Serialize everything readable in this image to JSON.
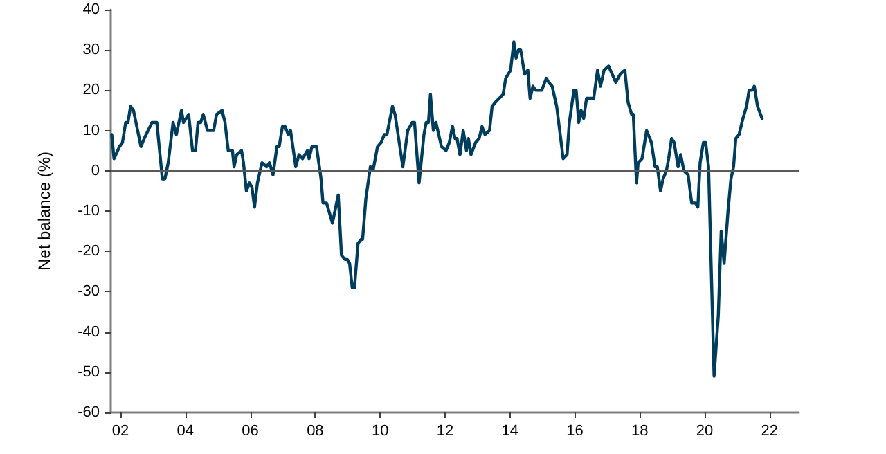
{
  "chart_data": {
    "type": "line",
    "ylabel": "Net balance (%)",
    "x": [
      2001.73,
      2001.8,
      2001.97,
      2002.06,
      2002.16,
      2002.23,
      2002.31,
      2002.4,
      2002.63,
      2002.73,
      2002.97,
      2003.12,
      2003.29,
      2003.37,
      2003.47,
      2003.62,
      2003.72,
      2003.88,
      2003.94,
      2004.1,
      2004.22,
      2004.31,
      2004.39,
      2004.47,
      2004.55,
      2004.68,
      2004.79,
      2004.87,
      2004.96,
      2005.13,
      2005.22,
      2005.32,
      2005.45,
      2005.5,
      2005.58,
      2005.73,
      2005.79,
      2005.88,
      2005.97,
      2006.05,
      2006.13,
      2006.22,
      2006.36,
      2006.5,
      2006.59,
      2006.7,
      2006.82,
      2006.89,
      2006.99,
      2007.07,
      2007.17,
      2007.24,
      2007.4,
      2007.5,
      2007.61,
      2007.76,
      2007.81,
      2007.9,
      2008.04,
      2008.18,
      2008.24,
      2008.35,
      2008.53,
      2008.71,
      2008.81,
      2008.92,
      2008.99,
      2009.06,
      2009.14,
      2009.21,
      2009.32,
      2009.42,
      2009.46,
      2009.56,
      2009.7,
      2009.78,
      2009.92,
      2010.03,
      2010.13,
      2010.21,
      2010.38,
      2010.46,
      2010.7,
      2010.85,
      2010.99,
      2011.06,
      2011.2,
      2011.35,
      2011.42,
      2011.49,
      2011.55,
      2011.64,
      2011.72,
      2011.89,
      2012.03,
      2012.13,
      2012.23,
      2012.31,
      2012.37,
      2012.46,
      2012.56,
      2012.66,
      2012.72,
      2012.8,
      2012.94,
      2013.05,
      2013.14,
      2013.23,
      2013.37,
      2013.45,
      2013.55,
      2013.67,
      2013.79,
      2013.87,
      2014.02,
      2014.12,
      2014.19,
      2014.26,
      2014.33,
      2014.45,
      2014.55,
      2014.62,
      2014.71,
      2014.79,
      2014.98,
      2015.12,
      2015.19,
      2015.3,
      2015.44,
      2015.64,
      2015.76,
      2015.83,
      2015.97,
      2016.04,
      2016.12,
      2016.19,
      2016.27,
      2016.36,
      2016.47,
      2016.58,
      2016.7,
      2016.79,
      2016.9,
      2017.04,
      2017.26,
      2017.4,
      2017.54,
      2017.64,
      2017.75,
      2017.8,
      2017.9,
      2017.95,
      2018.07,
      2018.21,
      2018.36,
      2018.47,
      2018.54,
      2018.64,
      2018.72,
      2018.82,
      2018.89,
      2018.98,
      2019.06,
      2019.18,
      2019.26,
      2019.36,
      2019.49,
      2019.6,
      2019.72,
      2019.79,
      2019.86,
      2019.96,
      2020.03,
      2020.12,
      2020.29,
      2020.42,
      2020.51,
      2020.6,
      2020.72,
      2020.81,
      2020.89,
      2020.96,
      2021.06,
      2021.18,
      2021.29,
      2021.37,
      2021.46,
      2021.53,
      2021.63,
      2021.77
    ],
    "series": [
      {
        "color": "#003d5c",
        "values": [
          9,
          3,
          6,
          7,
          12,
          12,
          16,
          15,
          6,
          8,
          12,
          12,
          -2,
          -2,
          2,
          12,
          9,
          15,
          12,
          14,
          5,
          5,
          12,
          12,
          14,
          10,
          10,
          10,
          14,
          15,
          12,
          5,
          5,
          1,
          4,
          5,
          2,
          -5,
          -3,
          -4,
          -9,
          -3,
          2,
          1,
          2,
          -1,
          6,
          6,
          11,
          11,
          9,
          10,
          1,
          4,
          3,
          5,
          3,
          6,
          6,
          -2,
          -8,
          -8,
          -13,
          -6,
          -21,
          -22,
          -22,
          -23,
          -29,
          -29,
          -18,
          -17,
          -17,
          -7,
          1,
          0,
          6,
          7,
          9,
          9,
          16,
          14,
          1,
          10,
          12,
          12,
          -3,
          9,
          12,
          12,
          19,
          10,
          12,
          6,
          5,
          7,
          11,
          8,
          8,
          4,
          10,
          5,
          8,
          4,
          7,
          8,
          11,
          9,
          10,
          16,
          17,
          18,
          19,
          23,
          25,
          32,
          28,
          30,
          30,
          24,
          25,
          18,
          21,
          20,
          20,
          23,
          22,
          21,
          16,
          3,
          4,
          12,
          20,
          20,
          12,
          15,
          13,
          18,
          18,
          18,
          25,
          21,
          25,
          26,
          22,
          24,
          25,
          17,
          14,
          14,
          -3,
          2,
          3,
          10,
          7,
          1,
          1,
          -5,
          -2,
          0,
          3,
          8,
          7,
          1,
          4,
          0,
          -1,
          -8,
          -8,
          -9,
          2,
          7,
          7,
          1,
          -51,
          -36,
          -15,
          -23,
          -10,
          -2,
          1,
          8,
          9,
          13,
          16,
          20,
          20,
          21,
          16,
          13
        ]
      }
    ],
    "xlim": [
      2001.7,
      2022.9
    ],
    "xticks": [
      {
        "value": 2002,
        "label": "02"
      },
      {
        "value": 2004,
        "label": "04"
      },
      {
        "value": 2006,
        "label": "06"
      },
      {
        "value": 2008,
        "label": "08"
      },
      {
        "value": 2010,
        "label": "10"
      },
      {
        "value": 2012,
        "label": "12"
      },
      {
        "value": 2014,
        "label": "14"
      },
      {
        "value": 2016,
        "label": "16"
      },
      {
        "value": 2018,
        "label": "18"
      },
      {
        "value": 2020,
        "label": "20"
      },
      {
        "value": 2022,
        "label": "22"
      }
    ],
    "ylim": [
      -60,
      40
    ],
    "yticks": [
      -60,
      -50,
      -40,
      -30,
      -20,
      -10,
      0,
      10,
      20,
      30,
      40
    ],
    "ref_lines": [
      {
        "axis": "y",
        "value": 0,
        "color": "#595959"
      }
    ],
    "grid": false,
    "marker": "none",
    "line_style": "solid"
  }
}
